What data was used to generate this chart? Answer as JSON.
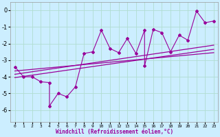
{
  "background_color": "#cceeff",
  "grid_color": "#b0ddd0",
  "line_color": "#990099",
  "xlabel": "Windchill (Refroidissement éolien,°C)",
  "xlim": [
    -0.5,
    23.5
  ],
  "ylim": [
    -6.7,
    0.5
  ],
  "yticks": [
    0,
    -1,
    -2,
    -3,
    -4,
    -5,
    -6
  ],
  "xticks": [
    0,
    1,
    2,
    3,
    4,
    5,
    6,
    7,
    8,
    9,
    10,
    11,
    12,
    13,
    14,
    15,
    16,
    17,
    18,
    19,
    20,
    21,
    22,
    23
  ],
  "data_x": [
    0,
    1,
    2,
    3,
    4,
    4,
    5,
    6,
    7,
    8,
    9,
    10,
    11,
    12,
    13,
    14,
    15,
    15,
    16,
    17,
    18,
    19,
    20,
    21,
    22,
    23
  ],
  "data_y": [
    -3.4,
    -4.0,
    -4.0,
    -4.3,
    -4.35,
    -5.75,
    -5.0,
    -5.2,
    -4.6,
    -2.6,
    -2.5,
    -1.2,
    -2.3,
    -2.55,
    -1.7,
    -2.6,
    -1.2,
    -3.35,
    -1.15,
    -1.35,
    -2.5,
    -1.5,
    -1.8,
    -0.05,
    -0.75,
    -0.65
  ],
  "reg_lines": [
    {
      "x": [
        0,
        23
      ],
      "y": [
        -3.85,
        -2.1
      ]
    },
    {
      "x": [
        0,
        23
      ],
      "y": [
        -4.05,
        -2.35
      ]
    },
    {
      "x": [
        0,
        23
      ],
      "y": [
        -3.65,
        -2.55
      ]
    }
  ]
}
